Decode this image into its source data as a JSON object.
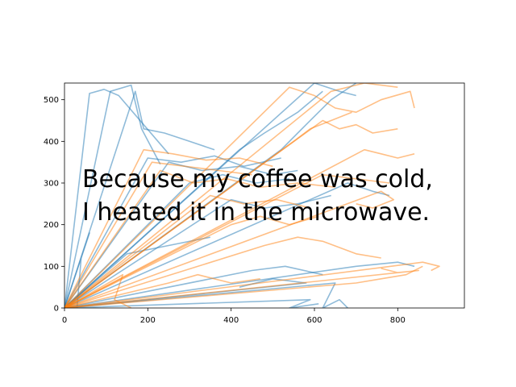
{
  "chart_data": {
    "type": "line",
    "title": "",
    "xlabel": "",
    "ylabel": "",
    "xlim": [
      0,
      960
    ],
    "ylim": [
      0,
      540
    ],
    "x_ticks": [
      0,
      200,
      400,
      600,
      800
    ],
    "y_ticks": [
      0,
      100,
      200,
      300,
      400,
      500
    ],
    "grid": false,
    "annotation_lines": [
      "Because my coffee was cold,",
      "I heated it in the microwave."
    ],
    "series": [
      {
        "color": "#1f77b4",
        "opacity": 0.5,
        "strokes": [
          [
            [
              0,
              0
            ],
            [
              110,
              520
            ],
            [
              160,
              535
            ],
            [
              185,
              430
            ],
            [
              230,
              345
            ]
          ],
          [
            [
              0,
              0
            ],
            [
              250,
              350
            ],
            [
              330,
              330
            ],
            [
              420,
              340
            ],
            [
              500,
              320
            ],
            [
              560,
              330
            ]
          ],
          [
            [
              0,
              0
            ],
            [
              300,
              300
            ],
            [
              380,
              320
            ],
            [
              460,
              300
            ],
            [
              540,
              310
            ]
          ],
          [
            [
              0,
              0
            ],
            [
              60,
              515
            ],
            [
              95,
              525
            ],
            [
              130,
              510
            ],
            [
              250,
              370
            ]
          ],
          [
            [
              0,
              0
            ],
            [
              200,
              360
            ],
            [
              280,
              350
            ],
            [
              360,
              365
            ],
            [
              430,
              340
            ],
            [
              520,
              360
            ]
          ],
          [
            [
              0,
              0
            ],
            [
              420,
              380
            ],
            [
              480,
              420
            ],
            [
              560,
              470
            ],
            [
              620,
              520
            ]
          ],
          [
            [
              0,
              0
            ],
            [
              600,
              540
            ],
            [
              660,
              520
            ],
            [
              700,
              510
            ]
          ],
          [
            [
              0,
              0
            ],
            [
              700,
              100
            ],
            [
              800,
              110
            ],
            [
              840,
              100
            ]
          ],
          [
            [
              0,
              0
            ],
            [
              650,
              60
            ],
            [
              620,
              0
            ],
            [
              660,
              20
            ],
            [
              680,
              0
            ]
          ],
          [
            [
              0,
              0
            ],
            [
              580,
              60
            ],
            [
              500,
              70
            ],
            [
              420,
              50
            ]
          ],
          [
            [
              0,
              0
            ],
            [
              60,
              180
            ],
            [
              40,
              120
            ],
            [
              30,
              0
            ]
          ],
          [
            [
              0,
              0
            ],
            [
              170,
              520
            ],
            [
              190,
              430
            ],
            [
              240,
              420
            ],
            [
              300,
              400
            ],
            [
              360,
              380
            ]
          ],
          [
            [
              0,
              0
            ],
            [
              400,
              260
            ],
            [
              480,
              240
            ],
            [
              560,
              250
            ],
            [
              640,
              270
            ]
          ],
          [
            [
              0,
              0
            ],
            [
              680,
              300
            ],
            [
              740,
              280
            ],
            [
              780,
              270
            ]
          ],
          [
            [
              0,
              0
            ],
            [
              520,
              380
            ],
            [
              560,
              420
            ],
            [
              600,
              460
            ],
            [
              640,
              500
            ],
            [
              700,
              540
            ]
          ],
          [
            [
              0,
              0
            ],
            [
              150,
              130
            ],
            [
              250,
              150
            ],
            [
              350,
              170
            ]
          ],
          [
            [
              0,
              0
            ],
            [
              450,
              90
            ],
            [
              530,
              100
            ],
            [
              620,
              80
            ]
          ],
          [
            [
              0,
              0
            ],
            [
              590,
              20
            ],
            [
              540,
              0
            ],
            [
              610,
              10
            ]
          ]
        ]
      },
      {
        "color": "#ff7f0e",
        "opacity": 0.5,
        "strokes": [
          [
            [
              0,
              0
            ],
            [
              190,
              380
            ],
            [
              260,
              370
            ],
            [
              340,
              355
            ],
            [
              420,
              360
            ],
            [
              500,
              340
            ]
          ],
          [
            [
              0,
              0
            ],
            [
              230,
              330
            ],
            [
              310,
              300
            ],
            [
              390,
              310
            ],
            [
              470,
              290
            ],
            [
              560,
              300
            ],
            [
              650,
              290
            ]
          ],
          [
            [
              0,
              0
            ],
            [
              760,
              280
            ],
            [
              790,
              260
            ],
            [
              740,
              240
            ],
            [
              700,
              250
            ]
          ],
          [
            [
              0,
              0
            ],
            [
              860,
              110
            ],
            [
              900,
              100
            ],
            [
              880,
              90
            ]
          ],
          [
            [
              0,
              0
            ],
            [
              850,
              90
            ],
            [
              800,
              85
            ],
            [
              760,
              95
            ]
          ],
          [
            [
              0,
              0
            ],
            [
              540,
              530
            ],
            [
              600,
              510
            ],
            [
              650,
              480
            ],
            [
              700,
              470
            ],
            [
              760,
              500
            ],
            [
              830,
              520
            ],
            [
              840,
              480
            ]
          ],
          [
            [
              0,
              0
            ],
            [
              620,
              450
            ],
            [
              660,
              430
            ],
            [
              700,
              440
            ],
            [
              740,
              420
            ],
            [
              800,
              430
            ]
          ],
          [
            [
              0,
              0
            ],
            [
              720,
              380
            ],
            [
              760,
              370
            ],
            [
              800,
              360
            ],
            [
              840,
              370
            ]
          ],
          [
            [
              0,
              0
            ],
            [
              620,
              320
            ],
            [
              700,
              310
            ],
            [
              780,
              300
            ]
          ],
          [
            [
              0,
              0
            ],
            [
              480,
              150
            ],
            [
              560,
              170
            ],
            [
              620,
              160
            ],
            [
              700,
              130
            ],
            [
              760,
              120
            ]
          ],
          [
            [
              0,
              0
            ],
            [
              140,
              80
            ],
            [
              120,
              20
            ],
            [
              160,
              0
            ]
          ],
          [
            [
              0,
              0
            ],
            [
              350,
              270
            ],
            [
              430,
              250
            ],
            [
              510,
              260
            ],
            [
              590,
              240
            ]
          ],
          [
            [
              0,
              0
            ],
            [
              550,
              400
            ],
            [
              590,
              430
            ],
            [
              640,
              450
            ],
            [
              690,
              470
            ]
          ],
          [
            [
              0,
              0
            ],
            [
              400,
              200
            ],
            [
              470,
              220
            ],
            [
              540,
              200
            ],
            [
              610,
              220
            ]
          ],
          [
            [
              0,
              0
            ],
            [
              700,
              60
            ],
            [
              760,
              70
            ],
            [
              820,
              80
            ],
            [
              860,
              100
            ]
          ],
          [
            [
              0,
              0
            ],
            [
              210,
              350
            ],
            [
              290,
              340
            ],
            [
              370,
              330
            ],
            [
              450,
              320
            ]
          ],
          [
            [
              0,
              0
            ],
            [
              640,
              520
            ],
            [
              720,
              540
            ],
            [
              800,
              530
            ]
          ],
          [
            [
              0,
              0
            ],
            [
              250,
              60
            ],
            [
              320,
              80
            ],
            [
              400,
              60
            ],
            [
              470,
              70
            ]
          ]
        ]
      }
    ]
  }
}
